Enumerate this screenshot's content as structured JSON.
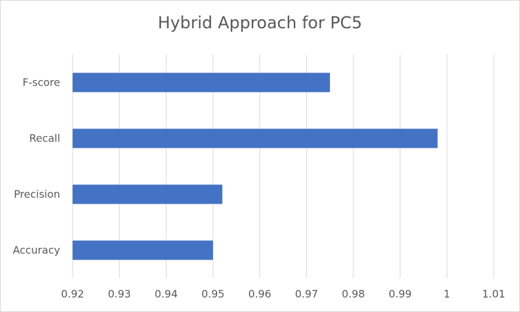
{
  "chart_data": {
    "type": "bar",
    "orientation": "horizontal",
    "title": "Hybrid Approach for PC5",
    "categories": [
      "Accuracy",
      "Precision",
      "Recall",
      "F-score"
    ],
    "values": [
      0.95,
      0.952,
      0.998,
      0.975
    ],
    "xlabel": "",
    "ylabel": "",
    "xlim": [
      0.92,
      1.01
    ],
    "xticks": [
      "0.92",
      "0.93",
      "0.94",
      "0.95",
      "0.96",
      "0.97",
      "0.98",
      "0.99",
      "1",
      "1.01"
    ],
    "grid": "vertical",
    "legend": "none",
    "bar_color": "#4472c4",
    "grid_color": "#d9d9d9"
  }
}
